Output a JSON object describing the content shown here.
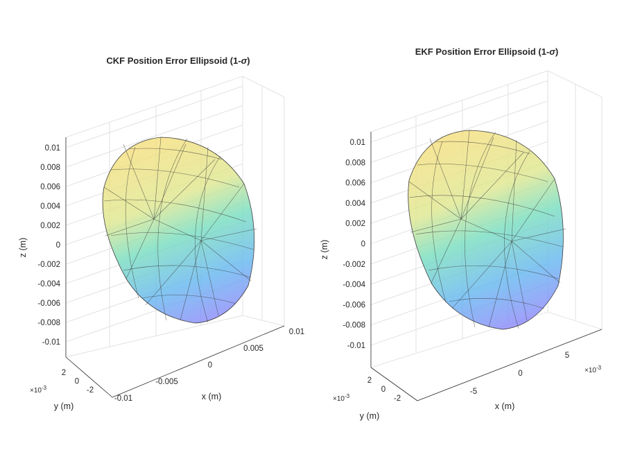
{
  "chart_data": [
    {
      "type": "surface",
      "title": "CKF  Position  Error  Ellipsoid  (1-",
      "title_sigma": "σ",
      "title_close": ")",
      "xlabel": "x (m)",
      "ylabel": "y (m)",
      "zlabel": "z (m)",
      "z_ticks": [
        "0.01",
        "0.008",
        "0.006",
        "0.004",
        "0.002",
        "0",
        "-0.002",
        "-0.004",
        "-0.006",
        "-0.008",
        "-0.01"
      ],
      "x_ticks": [
        "-0.01",
        "-0.005",
        "0",
        "0.005",
        "0.01"
      ],
      "x_exponent": "",
      "y_ticks": [
        "-2",
        "0",
        "2"
      ],
      "y_exponent": "×10",
      "y_exponent_power": "-3",
      "zlim": [
        -0.011,
        0.011
      ],
      "xlim": [
        -0.011,
        0.011
      ],
      "ylim": [
        -0.003,
        0.003
      ],
      "colormap": [
        "#8a7ffb",
        "#5fb3ef",
        "#72dcbc",
        "#dde68a",
        "#f3de7a"
      ],
      "grid": true
    },
    {
      "type": "surface",
      "title": "EKF  Position  Error  Ellipsoid  (1-",
      "title_sigma": "σ",
      "title_close": ")",
      "xlabel": "x (m)",
      "ylabel": "y (m)",
      "zlabel": "z (m)",
      "z_ticks": [
        "0.01",
        "0.008",
        "0.006",
        "0.004",
        "0.002",
        "0",
        "-0.002",
        "-0.004",
        "-0.006",
        "-0.008",
        "-0.01"
      ],
      "x_ticks": [
        "-5",
        "0",
        "5"
      ],
      "x_exponent": "×10",
      "x_exponent_power": "-3",
      "y_ticks": [
        "-2",
        "0",
        "2"
      ],
      "y_exponent": "×10",
      "y_exponent_power": "-3",
      "zlim": [
        -0.011,
        0.011
      ],
      "xlim": [
        -0.009,
        0.009
      ],
      "ylim": [
        -0.003,
        0.003
      ],
      "colormap": [
        "#8a7ffb",
        "#5fb3ef",
        "#72dcbc",
        "#dde68a",
        "#f3de7a"
      ],
      "grid": true
    }
  ]
}
